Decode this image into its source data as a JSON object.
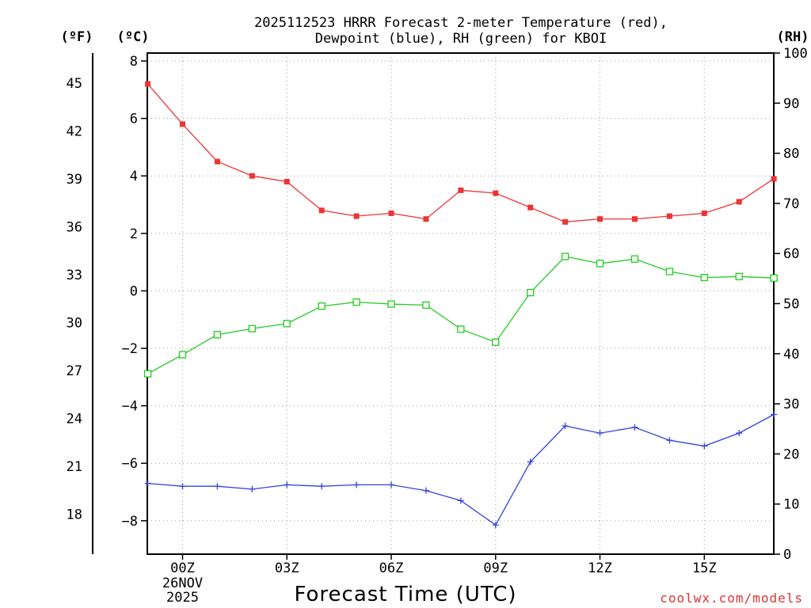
{
  "chart_data": {
    "type": "line",
    "title": "2025112523 HRRR Forecast 2-meter Temperature (red),",
    "subtitle": "Dewpoint (blue), RH (green) for KBOI",
    "xlabel": "Forecast Time (UTC)",
    "unit_labels": {
      "celsius": "(ºC)",
      "fahrenheit": "(ºF)",
      "rh": "(RH)"
    },
    "credit": "coolwx.com/models",
    "x": [
      -1,
      0,
      1,
      2,
      3,
      4,
      5,
      6,
      7,
      8,
      9,
      10,
      11,
      12,
      13,
      14,
      15,
      16,
      17
    ],
    "xlim": [
      -1,
      17
    ],
    "x_ticks": [
      {
        "x": 0,
        "label": "00Z",
        "sub": [
          "26NOV",
          "2025"
        ]
      },
      {
        "x": 3,
        "label": "03Z"
      },
      {
        "x": 6,
        "label": "06Z"
      },
      {
        "x": 9,
        "label": "09Z"
      },
      {
        "x": 12,
        "label": "12Z"
      },
      {
        "x": 15,
        "label": "15Z"
      }
    ],
    "y_left_c": {
      "ylim": [
        -9.2,
        8.2
      ],
      "ticks": [
        -8,
        -6,
        -4,
        -2,
        0,
        2,
        4,
        6,
        8
      ],
      "tick_labels": [
        "−8",
        "−6",
        "−4",
        "−2",
        "0",
        "2",
        "4",
        "6",
        "8"
      ]
    },
    "y_left_f": {
      "ticks": [
        18,
        21,
        24,
        27,
        30,
        33,
        36,
        39,
        42,
        45
      ]
    },
    "y_right_rh": {
      "ylim": [
        0,
        100
      ],
      "ticks": [
        0,
        10,
        20,
        30,
        40,
        50,
        60,
        70,
        80,
        90,
        100
      ]
    },
    "series": [
      {
        "name": "Temperature",
        "axis": "celsius",
        "color": "#ee3333",
        "marker": "filled-square",
        "values": [
          7.2,
          5.8,
          4.5,
          4.0,
          3.8,
          2.8,
          2.6,
          2.7,
          2.5,
          3.5,
          3.4,
          2.9,
          2.4,
          2.5,
          2.5,
          2.6,
          2.7,
          3.1,
          3.9
        ]
      },
      {
        "name": "Dewpoint",
        "axis": "celsius",
        "color": "#3344dd",
        "marker": "plus",
        "values": [
          -6.7,
          -6.8,
          -6.8,
          -6.9,
          -6.75,
          -6.8,
          -6.75,
          -6.75,
          -6.95,
          -7.3,
          -8.15,
          -5.95,
          -4.7,
          -4.95,
          -4.75,
          -5.2,
          -5.4,
          -4.95,
          -4.3
        ]
      },
      {
        "name": "RH",
        "axis": "rh",
        "color": "#22cc22",
        "marker": "open-square",
        "values": [
          36,
          39.8,
          43.8,
          45,
          46,
          49.5,
          50.3,
          49.9,
          49.7,
          44.9,
          42.3,
          52.2,
          59.4,
          58,
          58.9,
          56.4,
          55.2,
          55.4,
          55.1
        ]
      }
    ]
  }
}
